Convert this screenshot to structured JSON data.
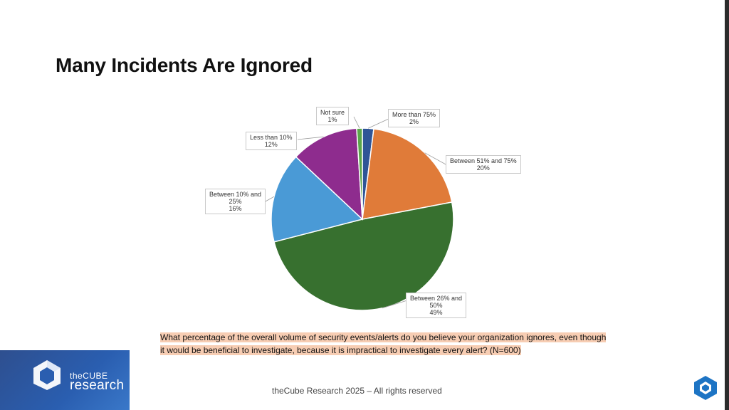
{
  "title": "Many Incidents Are Ignored",
  "question": "What percentage of the overall volume of security events/alerts do you believe your organization ignores, even though it would be beneficial to investigate, because it is impractical to investigate every alert? (N=600)",
  "footer": "theCube Research 2025 – All rights reserved",
  "brand": {
    "line1": "theCUBE",
    "line2": "research"
  },
  "colors": {
    "brand_blue": "#2a5eb0",
    "highlight": "#f7cdb3"
  },
  "chart_data": {
    "type": "pie",
    "title": "",
    "series": [
      {
        "label_lines": [
          "More than 75%"
        ],
        "value": 2,
        "pct": "2%",
        "color": "#2f5597"
      },
      {
        "label_lines": [
          "Between 51% and 75%"
        ],
        "value": 20,
        "pct": "20%",
        "color": "#e07b39"
      },
      {
        "label_lines": [
          "Between 26% and",
          "50%"
        ],
        "value": 49,
        "pct": "49%",
        "color": "#37702f"
      },
      {
        "label_lines": [
          "Between 10% and",
          "25%"
        ],
        "value": 16,
        "pct": "16%",
        "color": "#4a9ad6"
      },
      {
        "label_lines": [
          "Less than 10%"
        ],
        "value": 12,
        "pct": "12%",
        "color": "#8e2c8e"
      },
      {
        "label_lines": [
          "Not sure"
        ],
        "value": 1,
        "pct": "1%",
        "color": "#5aa64a"
      }
    ]
  }
}
